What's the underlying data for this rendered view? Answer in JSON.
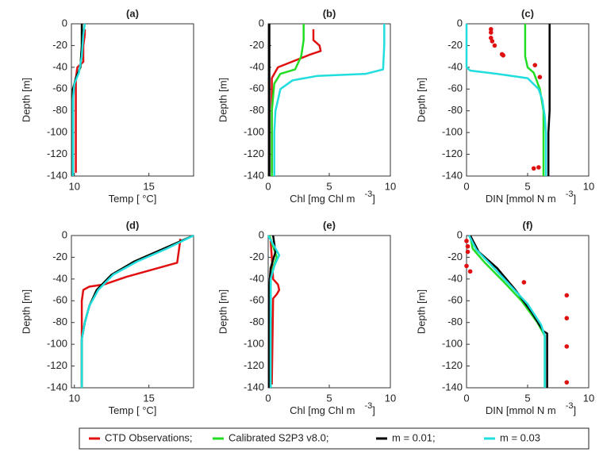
{
  "legend": [
    {
      "name": "CTD Observations;",
      "color": "#e01010"
    },
    {
      "name": "Calibrated S2P3 v8.0;",
      "color": "#22dd22"
    },
    {
      "name": "m = 0.01;",
      "color": "#000000"
    },
    {
      "name": "m = 0.03",
      "color": "#22dddd"
    }
  ],
  "chart_data": [
    {
      "type": "line",
      "title": "(a)",
      "xlabel": "Temp [ °C]",
      "ylabel": "Depth [m]",
      "xlim": [
        9.8,
        18
      ],
      "xticks": [
        10,
        15
      ],
      "ylim": [
        -140,
        0
      ],
      "yticks": [
        0,
        -20,
        -40,
        -60,
        -80,
        -100,
        -120,
        -140
      ],
      "series": [
        {
          "x": [
            10.7,
            10.7,
            10.6,
            10.6,
            10.2,
            10.1,
            10.1,
            10.1,
            10.1
          ],
          "y": [
            -5,
            -10,
            -20,
            -35,
            -40,
            -50,
            -80,
            -120,
            -137
          ]
        },
        {
          "x": [
            10.5,
            10.5,
            10.4,
            10.1,
            9.9,
            9.9,
            9.9
          ],
          "y": [
            0,
            -20,
            -40,
            -50,
            -60,
            -100,
            -140
          ]
        },
        {
          "x": [
            10.5,
            10.5,
            10.4,
            10.1,
            9.9,
            9.9,
            9.9
          ],
          "y": [
            0,
            -20,
            -40,
            -50,
            -60,
            -100,
            -140
          ]
        },
        {
          "x": [
            10.7,
            10.6,
            10.5,
            10.3,
            10.0,
            9.9,
            9.9,
            9.9
          ],
          "y": [
            0,
            -10,
            -30,
            -45,
            -55,
            -70,
            -100,
            -140
          ]
        }
      ]
    },
    {
      "type": "line",
      "title": "(b)",
      "xlabel": "Chl [mg Chl m",
      "xlabel_exp": "-3",
      "xlabel_end": "]",
      "ylabel": "Depth [m]",
      "xlim": [
        0,
        10
      ],
      "xticks": [
        0,
        5,
        10
      ],
      "ylim": [
        -140,
        0
      ],
      "yticks": [
        0,
        -20,
        -40,
        -60,
        -80,
        -100,
        -120,
        -140
      ],
      "series": [
        {
          "x": [
            3.7,
            3.7,
            4.2,
            4.3,
            3.5,
            0.8,
            0.3,
            0.3,
            0.3
          ],
          "y": [
            -5,
            -15,
            -20,
            -25,
            -28,
            -40,
            -50,
            -80,
            -137
          ]
        },
        {
          "x": [
            2.9,
            2.9,
            2.7,
            2.2,
            1.0,
            0.5,
            0.3,
            0.3
          ],
          "y": [
            0,
            -15,
            -30,
            -42,
            -46,
            -55,
            -80,
            -140
          ]
        },
        {
          "x": [
            0.1,
            0.1
          ],
          "y": [
            0,
            -140
          ]
        },
        {
          "x": [
            9.5,
            9.5,
            9.4,
            8.0,
            4,
            2,
            1,
            0.6,
            0.5,
            0.5
          ],
          "y": [
            0,
            -20,
            -42,
            -46,
            -48,
            -52,
            -60,
            -80,
            -100,
            -140
          ]
        }
      ]
    },
    {
      "type": "line",
      "title": "(c)",
      "xlabel": "DIN [mmol N m",
      "xlabel_exp": "-3",
      "xlabel_end": "]",
      "ylabel": "Depth [m]",
      "xlim": [
        0,
        10
      ],
      "xticks": [
        0,
        5,
        10
      ],
      "ylim": [
        -140,
        0
      ],
      "yticks": [
        0,
        -20,
        -40,
        -60,
        -80,
        -100,
        -120,
        -140
      ],
      "series": [
        {
          "markers": true,
          "x": [
            2,
            2,
            2,
            2.1,
            2.3,
            2.9,
            3.0,
            5.6,
            6.0,
            5.9,
            5.5
          ],
          "y": [
            -5,
            -8,
            -13,
            -16,
            -20,
            -28,
            -29,
            -38,
            -49,
            -132,
            -133
          ]
        },
        {
          "x": [
            4.8,
            4.8,
            5.0,
            5.5,
            6.0,
            6.3,
            6.3
          ],
          "y": [
            0,
            -30,
            -40,
            -45,
            -60,
            -80,
            -140
          ]
        },
        {
          "x": [
            6.8,
            6.8,
            6.8,
            6.7,
            6.7
          ],
          "y": [
            0,
            -40,
            -80,
            -100,
            -140
          ]
        },
        {
          "x": [
            0,
            0,
            0.3,
            2.5,
            5,
            5.9,
            6.2,
            6.4,
            6.5,
            6.5
          ],
          "y": [
            0,
            -40,
            -43,
            -46,
            -50,
            -60,
            -70,
            -85,
            -100,
            -140
          ]
        }
      ]
    },
    {
      "type": "line",
      "title": "(d)",
      "xlabel": "Temp [ °C]",
      "ylabel": "Depth [m]",
      "xlim": [
        9.8,
        18
      ],
      "xticks": [
        10,
        15
      ],
      "ylim": [
        -140,
        0
      ],
      "yticks": [
        0,
        -20,
        -40,
        -60,
        -80,
        -100,
        -120,
        -140
      ],
      "series": [
        {
          "x": [
            17.1,
            17.1,
            16.9,
            13.5,
            12,
            11,
            10.6,
            10.5,
            10.5,
            10.5
          ],
          "y": [
            -3,
            -5,
            -25,
            -38,
            -45,
            -47,
            -50,
            -60,
            -100,
            -137
          ]
        },
        {
          "x": [
            18,
            16,
            14,
            12.5,
            11.5,
            11,
            10.7,
            10.5,
            10.5
          ],
          "y": [
            0,
            -12,
            -24,
            -36,
            -50,
            -65,
            -80,
            -95,
            -140
          ]
        },
        {
          "x": [
            18,
            16,
            14,
            12.5,
            11.5,
            11,
            10.7,
            10.5,
            10.5
          ],
          "y": [
            0,
            -12,
            -24,
            -36,
            -50,
            -65,
            -80,
            -95,
            -140
          ]
        },
        {
          "x": [
            18,
            16.2,
            14.2,
            12.6,
            11.6,
            11,
            10.7,
            10.5,
            10.5
          ],
          "y": [
            0,
            -12,
            -24,
            -36,
            -50,
            -65,
            -80,
            -95,
            -140
          ]
        }
      ]
    },
    {
      "type": "line",
      "title": "(e)",
      "xlabel": "Chl [mg Chl m",
      "xlabel_exp": "-3",
      "xlabel_end": "]",
      "ylabel": "Depth [m]",
      "xlim": [
        0,
        10
      ],
      "xticks": [
        0,
        5,
        10
      ],
      "ylim": [
        -140,
        0
      ],
      "yticks": [
        0,
        -20,
        -40,
        -60,
        -80,
        -100,
        -120,
        -140
      ],
      "series": [
        {
          "x": [
            0.2,
            0.3,
            0.4,
            0.8,
            0.9,
            0.7,
            0.4,
            0.3
          ],
          "y": [
            -5,
            -20,
            -40,
            -45,
            -50,
            -54,
            -58,
            -137
          ]
        },
        {
          "x": [
            0.1,
            0.4,
            0.7,
            0.4,
            0.2,
            0.2
          ],
          "y": [
            0,
            -10,
            -20,
            -30,
            -40,
            -140
          ]
        },
        {
          "x": [
            0.4,
            0.6,
            0.2,
            0.1,
            0.1
          ],
          "y": [
            0,
            -15,
            -30,
            -45,
            -140
          ]
        },
        {
          "x": [
            0,
            0.5,
            0.9,
            0.5,
            0.2,
            0.2
          ],
          "y": [
            0,
            -10,
            -18,
            -28,
            -40,
            -140
          ]
        }
      ]
    },
    {
      "type": "line",
      "title": "(f)",
      "xlabel": "DIN [mmol N m",
      "xlabel_exp": "-3",
      "xlabel_end": "]",
      "ylabel": "Depth [m]",
      "xlim": [
        0,
        10
      ],
      "xticks": [
        0,
        5,
        10
      ],
      "ylim": [
        -140,
        0
      ],
      "yticks": [
        0,
        -20,
        -40,
        -60,
        -80,
        -100,
        -120,
        -140
      ],
      "series": [
        {
          "markers": true,
          "x": [
            0,
            0.1,
            0.1,
            0,
            0.3,
            4.7,
            8.2,
            8.2,
            8.2,
            8.2
          ],
          "y": [
            -5,
            -10,
            -15,
            -28,
            -33,
            -43,
            -55,
            -76,
            -102,
            -135
          ]
        },
        {
          "x": [
            0.3,
            0.5,
            1.5,
            3,
            4.5,
            5.8,
            6.4,
            6.4
          ],
          "y": [
            0,
            -12,
            -25,
            -42,
            -60,
            -80,
            -92,
            -140
          ]
        },
        {
          "x": [
            0.3,
            1,
            2.5,
            4,
            5.3,
            6.3,
            6.6,
            6.6
          ],
          "y": [
            0,
            -15,
            -30,
            -50,
            -70,
            -88,
            -90,
            -140
          ]
        },
        {
          "x": [
            0.2,
            0.8,
            2,
            3.5,
            5,
            6.1,
            6.4,
            6.4
          ],
          "y": [
            0,
            -13,
            -27,
            -45,
            -63,
            -82,
            -92,
            -140
          ]
        }
      ]
    }
  ]
}
